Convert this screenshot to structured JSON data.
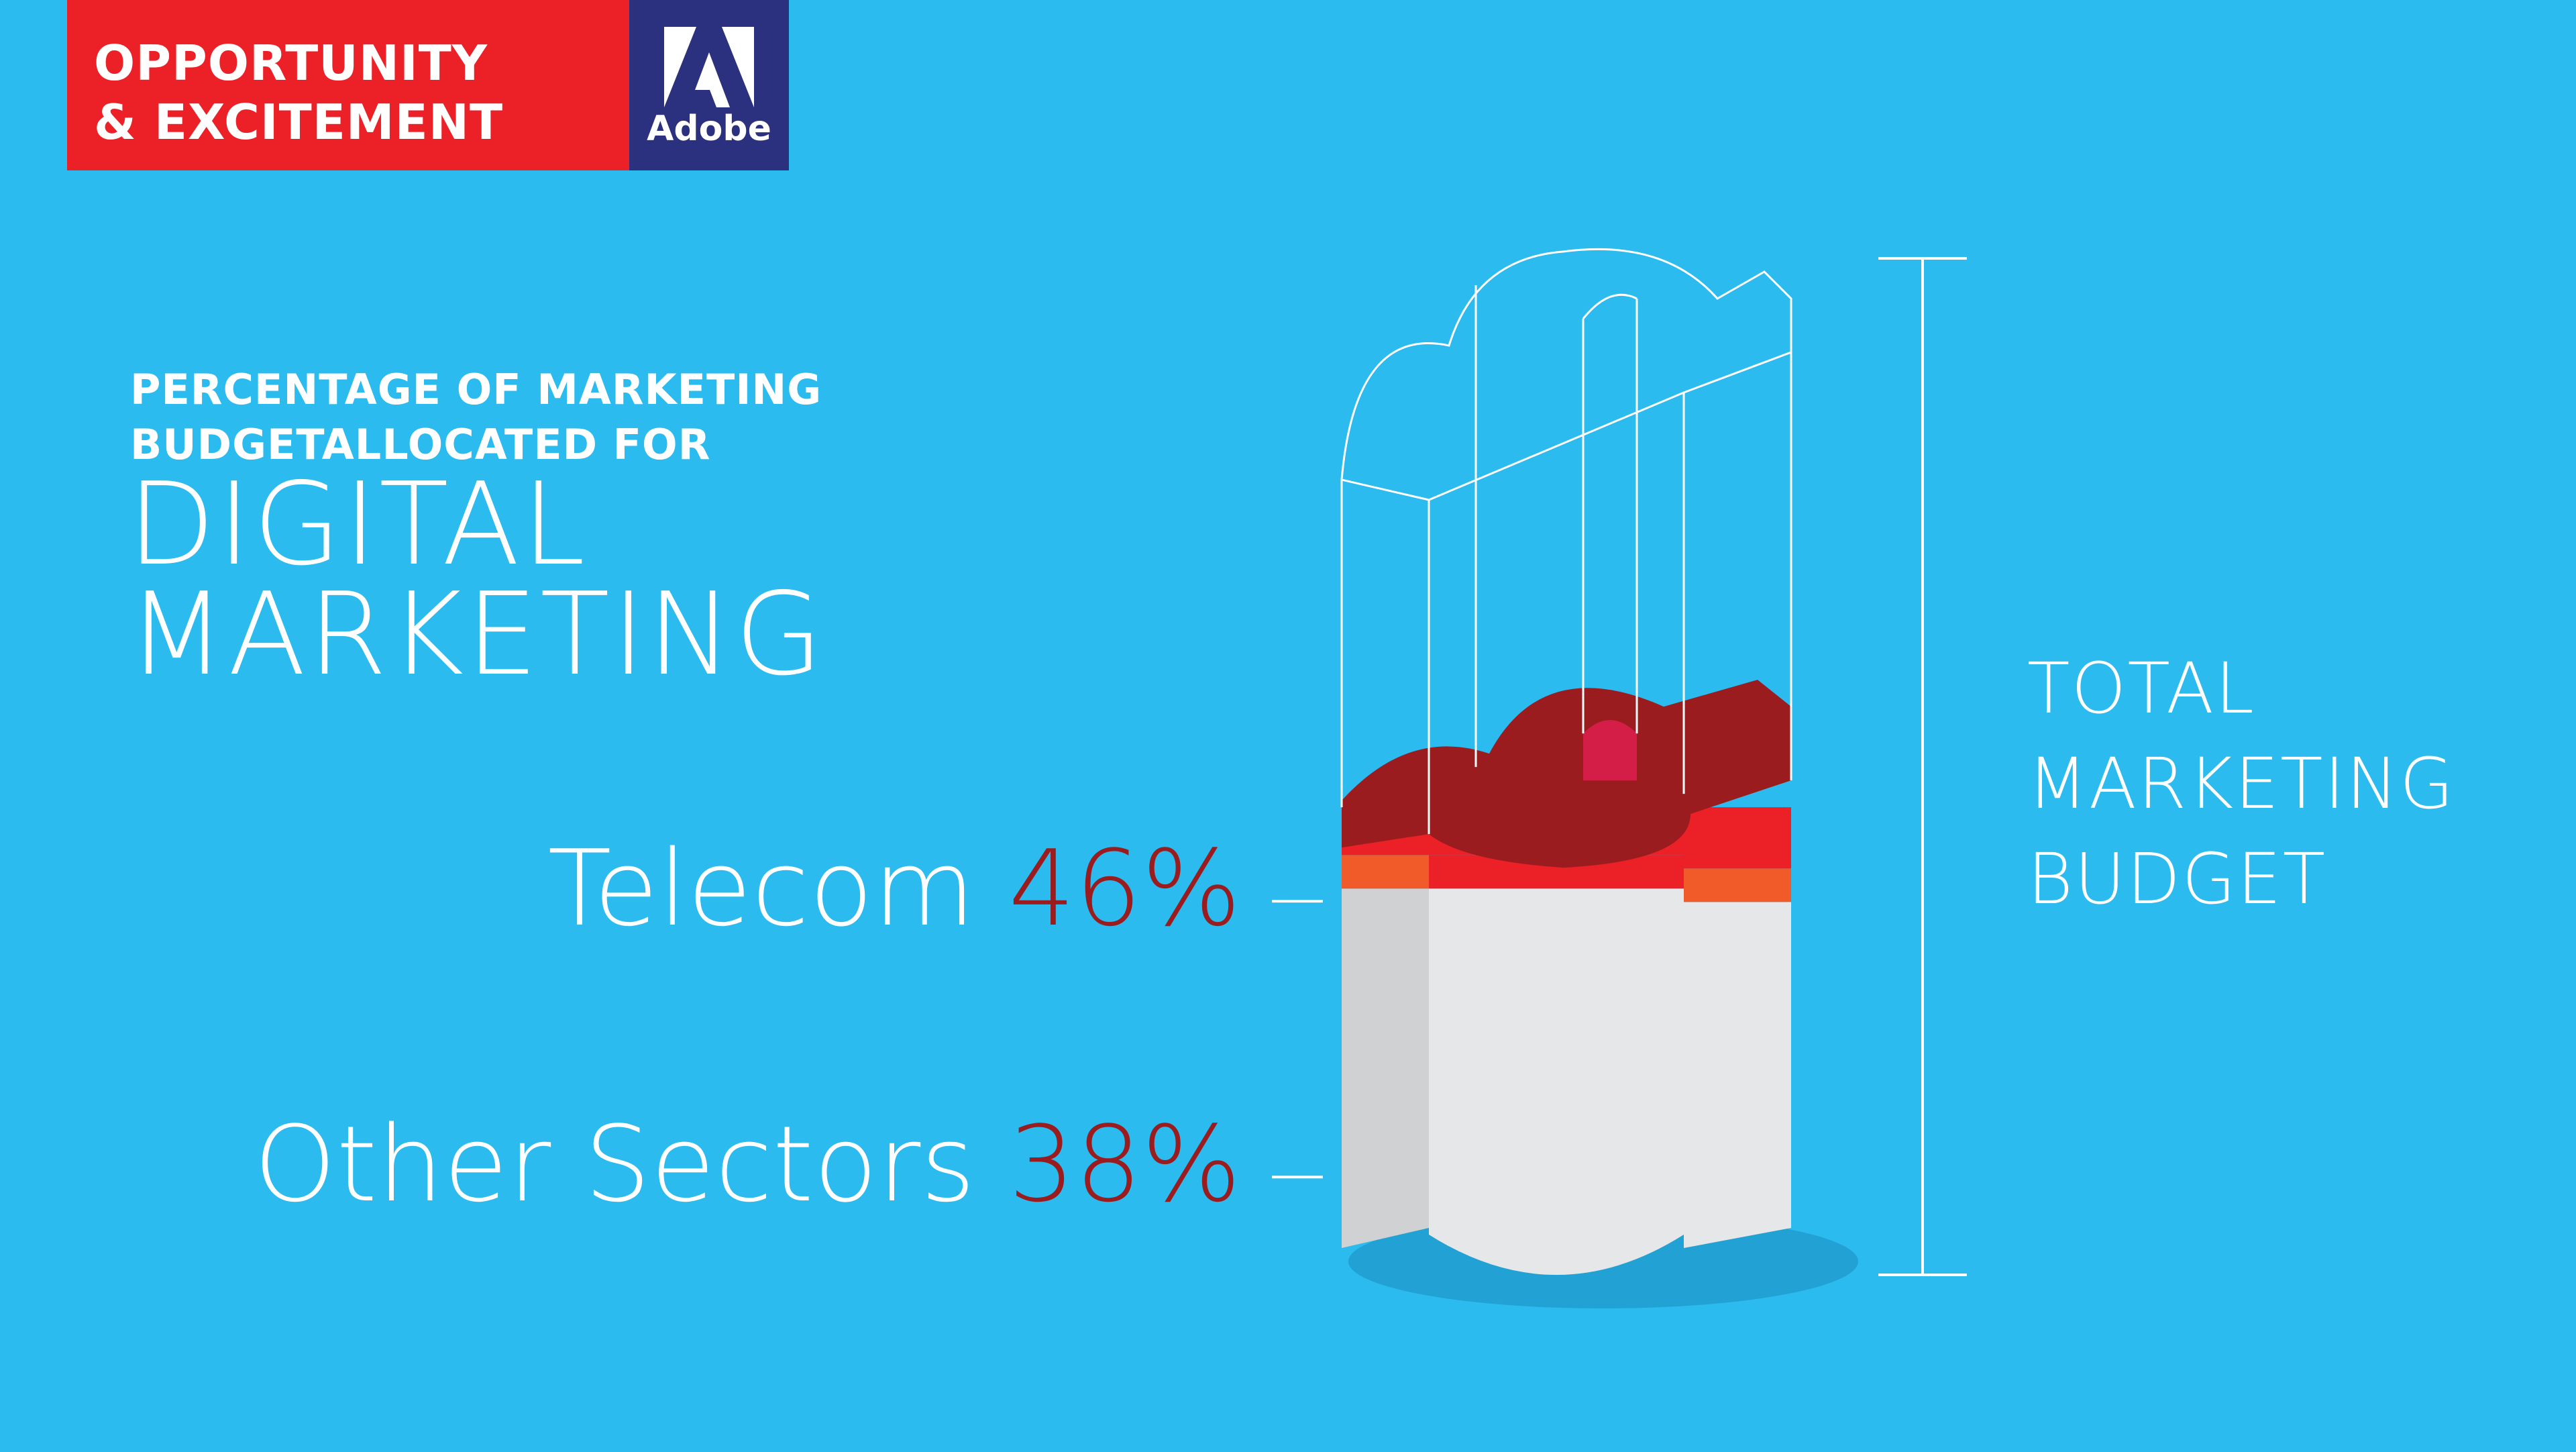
{
  "banner": {
    "line1": "OPPORTUNITY",
    "line2": "& EXCITEMENT",
    "color": "#ec2127"
  },
  "brand": {
    "name": "Adobe",
    "color": "#2b317f",
    "logo_icon": "adobe-logo-icon"
  },
  "heading": {
    "subtitle_line1": "PERCENTAGE OF MARKETING",
    "subtitle_line2": "BUDGETALLOCATED FOR",
    "title_line1": "DIGITAL",
    "title_line2": "MARKETING"
  },
  "total_label": {
    "line1": "TOTAL",
    "line2": "MARKETING",
    "line3": "BUDGET"
  },
  "colors": {
    "background": "#2bbbee",
    "percent_text": "#9b1c1f",
    "telecom_fill": "#9b1c1f",
    "other_fill": "#ec2127",
    "base_fill": "#e6e7e8"
  },
  "chart_data": {
    "type": "bar",
    "ylim": [
      0,
      100
    ],
    "categories": [
      "Telecom",
      "Other Sectors"
    ],
    "values": [
      46,
      38
    ],
    "unit": "%",
    "items": [
      {
        "label": "Telecom",
        "value_text": "46%"
      },
      {
        "label": "Other Sectors",
        "value_text": "38%"
      }
    ]
  }
}
